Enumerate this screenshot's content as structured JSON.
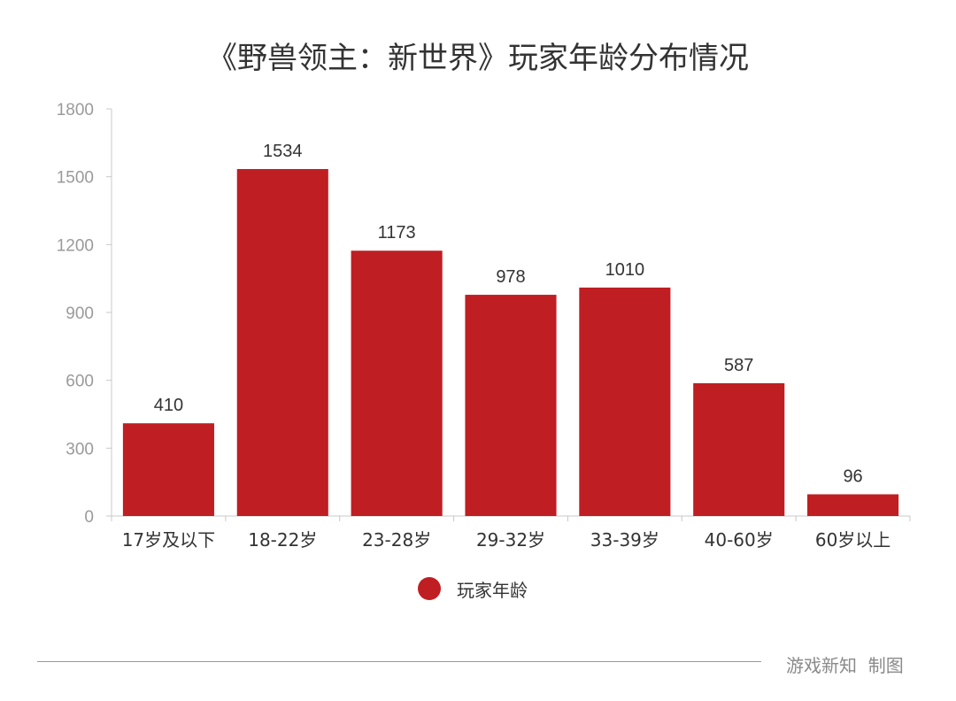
{
  "colors": {
    "bar": "#bf1e23",
    "axis": "#c8c8c8",
    "tick_text": "#9a9a9a",
    "text": "#333333"
  },
  "chart_data": {
    "type": "bar",
    "title": "《野兽领主：新世界》玩家年龄分布情况",
    "categories": [
      "17岁及以下",
      "18-22岁",
      "23-28岁",
      "29-32岁",
      "33-39岁",
      "40-60岁",
      "60岁以上"
    ],
    "series": [
      {
        "name": "玩家年龄",
        "values": [
          410,
          1534,
          1173,
          978,
          1010,
          587,
          96
        ]
      }
    ],
    "ylim": [
      0,
      1800
    ],
    "yticks": [
      0,
      300,
      600,
      900,
      1200,
      1500,
      1800
    ],
    "grid": false,
    "legend_position": "bottom",
    "data_labels": true
  },
  "footer": {
    "credit": "游戏新知  制图"
  }
}
